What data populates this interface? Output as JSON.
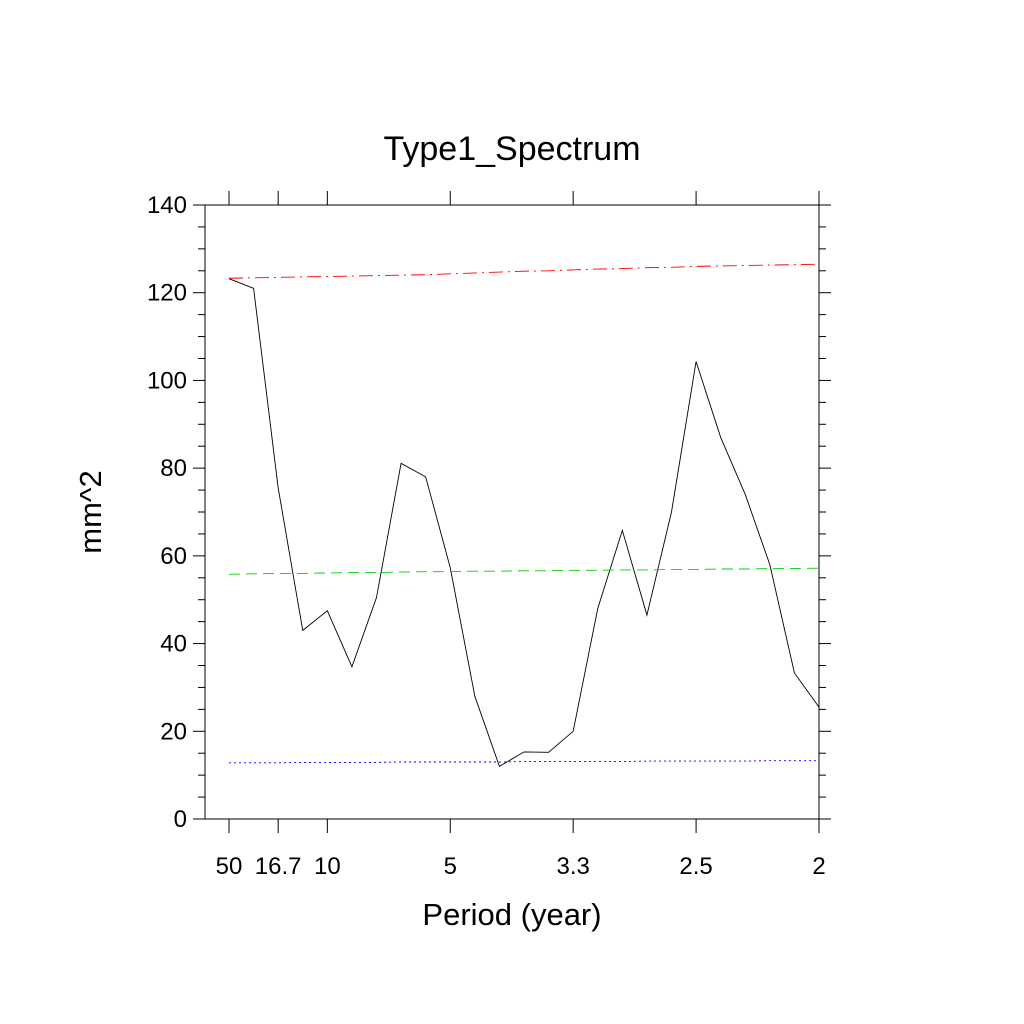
{
  "chart_data": {
    "type": "line",
    "title": "Type1_Spectrum",
    "xlabel": "Period (year)",
    "ylabel": "mm^2",
    "x_unit_note": "frequency (cycles per year); tick labels show period = 1/frequency",
    "x": [
      0.02,
      0.04,
      0.06,
      0.08,
      0.1,
      0.12,
      0.14,
      0.16,
      0.18,
      0.2,
      0.22,
      0.24,
      0.26,
      0.28,
      0.3,
      0.32,
      0.34,
      0.36,
      0.38,
      0.4,
      0.42,
      0.44,
      0.46,
      0.48,
      0.5
    ],
    "xlim": [
      0.02,
      0.5
    ],
    "ylim": [
      0,
      140
    ],
    "x_ticks": [
      {
        "value": 0.02,
        "label": "50"
      },
      {
        "value": 0.06,
        "label": "16.7"
      },
      {
        "value": 0.1,
        "label": "10"
      },
      {
        "value": 0.2,
        "label": "5"
      },
      {
        "value": 0.3,
        "label": "3.3"
      },
      {
        "value": 0.4,
        "label": "2.5"
      },
      {
        "value": 0.5,
        "label": "2"
      }
    ],
    "y_ticks": [
      0,
      20,
      40,
      60,
      80,
      100,
      120,
      140
    ],
    "series": [
      {
        "style": "solid",
        "color": "#000000",
        "values": [
          123.2,
          121.0,
          75.5,
          43.0,
          47.5,
          34.7,
          50.5,
          81.1,
          78.0,
          57.3,
          28.0,
          12.0,
          15.3,
          15.2,
          20.0,
          48.0,
          65.8,
          46.5,
          70.0,
          104.3,
          87.0,
          74.0,
          58.0,
          33.3,
          25.5
        ]
      },
      {
        "style": "dash-dot",
        "color": "#ff0000",
        "values": [
          123.3,
          123.4,
          123.5,
          123.6,
          123.7,
          123.8,
          123.9,
          124.0,
          124.1,
          124.3,
          124.5,
          124.7,
          124.9,
          125.0,
          125.2,
          125.4,
          125.5,
          125.7,
          125.8,
          126.0,
          126.1,
          126.2,
          126.3,
          126.4,
          126.5
        ]
      },
      {
        "style": "dashed",
        "color": "#00d000",
        "values": [
          55.8,
          55.9,
          56.0,
          56.0,
          56.1,
          56.2,
          56.2,
          56.3,
          56.4,
          56.4,
          56.5,
          56.5,
          56.6,
          56.6,
          56.7,
          56.7,
          56.8,
          56.8,
          56.9,
          56.9,
          57.0,
          57.0,
          57.1,
          57.1,
          57.2
        ]
      },
      {
        "style": "dotted",
        "color": "#0000ff",
        "values": [
          12.8,
          12.8,
          12.8,
          12.9,
          12.9,
          12.9,
          12.9,
          13.0,
          13.0,
          13.0,
          13.0,
          13.0,
          13.1,
          13.1,
          13.1,
          13.1,
          13.1,
          13.2,
          13.2,
          13.2,
          13.2,
          13.2,
          13.3,
          13.3,
          13.3
        ]
      }
    ],
    "grid": false,
    "legend": "none"
  }
}
